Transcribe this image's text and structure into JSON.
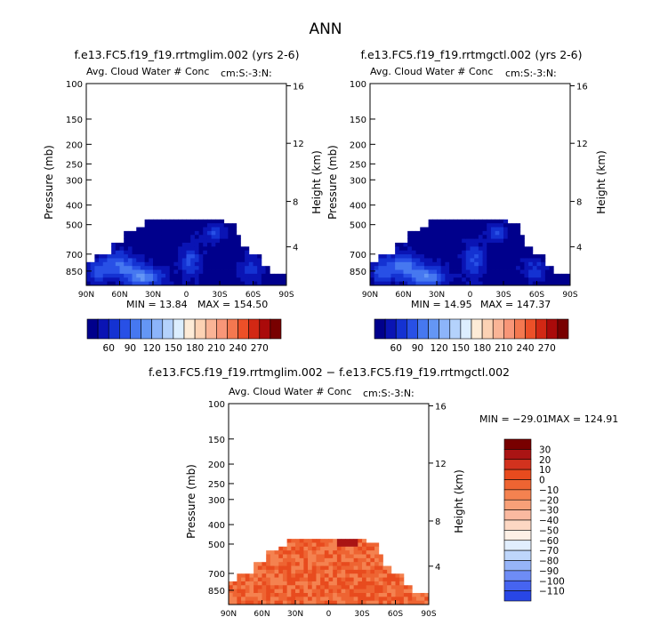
{
  "figure_title": "ANN",
  "colors": {
    "blue_scale": [
      "#00008c",
      "#0a14b4",
      "#1432d2",
      "#2850e6",
      "#4678f0",
      "#6496f5",
      "#8cb4fa",
      "#b4d2fc",
      "#dceefe",
      "#fdebd7",
      "#fcd2b4",
      "#fab496",
      "#f89678",
      "#f47850",
      "#ec5028",
      "#d22814",
      "#aa0a0a",
      "#780000"
    ],
    "red_scale": [
      "#000078",
      "#0a0aa0",
      "#1428c8",
      "#2846e6",
      "#4664f0",
      "#6e8cf5",
      "#96b4f8",
      "#bed6fb",
      "#e1eefd",
      "#fdf0e6",
      "#fcd7c3",
      "#fab9a0",
      "#f8a078",
      "#f48250",
      "#ee6432",
      "#e84b1e",
      "#d2321e",
      "#aa1414",
      "#780000"
    ]
  },
  "chart_data": [
    {
      "type": "heatmap",
      "title": "f.e13.FC5.f19_f19.rrtmglim.002 (yrs 2-6)",
      "subtitle": "Avg. Cloud Water # Conc",
      "units": "cm:S:-3:N:",
      "xlabel": "",
      "ylabel": "Pressure (mb)",
      "ylabel_right": "Height (km)",
      "x_ticks": [
        "90N",
        "60N",
        "30N",
        "0",
        "30S",
        "60S",
        "90S"
      ],
      "y_ticks": [
        "100",
        "150",
        "200",
        "250",
        "300",
        "400",
        "500",
        "700",
        "850"
      ],
      "y_ticks_right": [
        "16",
        "12",
        "8",
        "4"
      ],
      "ylim": [
        100,
        1000
      ],
      "y_scale": "log",
      "min_label": "MIN =  13.84",
      "max_label": "MAX = 154.50",
      "colorbar_labels": [
        "60",
        "90",
        "120",
        "150",
        "180",
        "210",
        "240",
        "270"
      ]
    },
    {
      "type": "heatmap",
      "title": "f.e13.FC5.f19_f19.rrtmgctl.002 (yrs 2-6)",
      "subtitle": "Avg. Cloud Water # Conc",
      "units": "cm:S:-3:N:",
      "xlabel": "",
      "ylabel": "Pressure (mb)",
      "ylabel_right": "Height (km)",
      "x_ticks": [
        "90N",
        "60N",
        "30N",
        "0",
        "30S",
        "60S",
        "90S"
      ],
      "y_ticks": [
        "100",
        "150",
        "200",
        "250",
        "300",
        "400",
        "500",
        "700",
        "850"
      ],
      "y_ticks_right": [
        "16",
        "12",
        "8",
        "4"
      ],
      "ylim": [
        100,
        1000
      ],
      "y_scale": "log",
      "min_label": "MIN =  14.95",
      "max_label": "MAX = 147.37",
      "colorbar_labels": [
        "60",
        "90",
        "120",
        "150",
        "180",
        "210",
        "240",
        "270"
      ]
    },
    {
      "type": "heatmap",
      "title": "f.e13.FC5.f19_f19.rrtmglim.002 − f.e13.FC5.f19_f19.rrtmgctl.002",
      "subtitle": "Avg. Cloud Water # Conc",
      "units": "cm:S:-3:N:",
      "xlabel": "",
      "ylabel": "Pressure (mb)",
      "ylabel_right": "Height (km)",
      "x_ticks": [
        "90N",
        "60N",
        "30N",
        "0",
        "30S",
        "60S",
        "90S"
      ],
      "y_ticks": [
        "100",
        "150",
        "200",
        "250",
        "300",
        "400",
        "500",
        "700",
        "850"
      ],
      "y_ticks_right": [
        "16",
        "12",
        "8",
        "4"
      ],
      "ylim": [
        100,
        1000
      ],
      "y_scale": "log",
      "min_label": "MIN = −29.01",
      "max_label": "MAX = 124.91",
      "colorbar_labels": [
        "30",
        "20",
        "10",
        "0",
        "−10",
        "−20",
        "−30",
        "−40",
        "−50",
        "−60",
        "−70",
        "−80",
        "−90",
        "−100",
        "−110"
      ]
    }
  ]
}
